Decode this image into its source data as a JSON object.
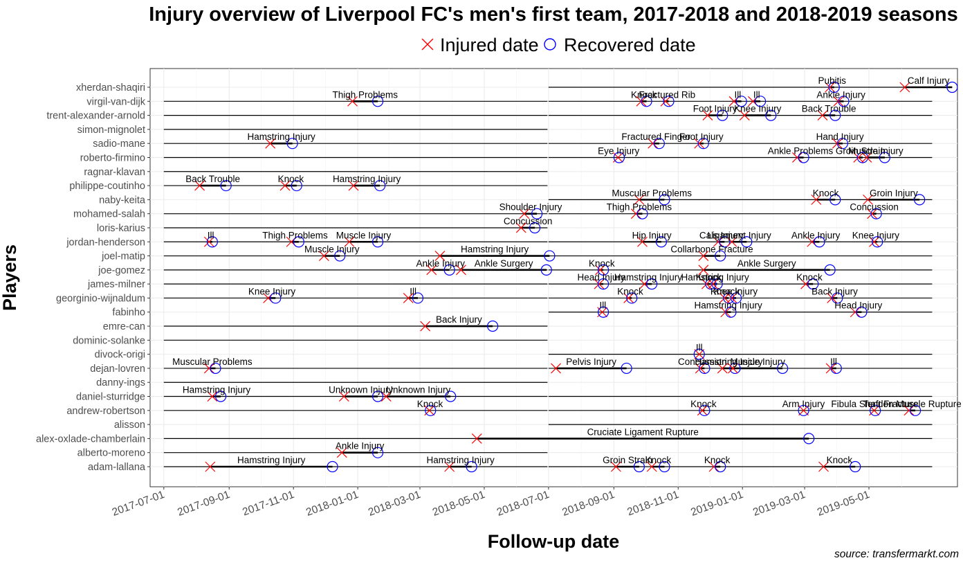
{
  "chart_data": {
    "type": "scatter",
    "title": "Injury overview of Liverpool FC's men's first team, 2017-2018 and 2018-2019 seasons",
    "xlabel": "Follow-up date",
    "ylabel": "Players",
    "caption": "source: transfermarkt.com",
    "legend": {
      "position": "top",
      "items": [
        {
          "label": "Injured date",
          "shape": "cross",
          "color": "#ff0000"
        },
        {
          "label": "Recovered date",
          "shape": "circle",
          "color": "#0000ff"
        }
      ]
    },
    "xlim": [
      "2017-06-18",
      "2019-07-24"
    ],
    "x_ticks": [
      "2017-07-01",
      "2017-09-01",
      "2017-11-01",
      "2018-01-01",
      "2018-03-01",
      "2018-05-01",
      "2018-07-01",
      "2018-09-01",
      "2018-11-01",
      "2019-01-01",
      "2019-03-01",
      "2019-05-01"
    ],
    "grid": true,
    "players": [
      {
        "name": "adam-lallana",
        "follow": [
          [
            "2017-07-01",
            "2018-06-30"
          ],
          [
            "2018-07-01",
            "2019-06-30"
          ]
        ],
        "injuries": [
          {
            "label": "Hamstring Injury",
            "start": "2017-08-14",
            "end": "2017-12-08"
          },
          {
            "label": "Hamstring Injury",
            "start": "2018-03-29",
            "end": "2018-04-19"
          },
          {
            "label": "Groin Strain",
            "start": "2018-09-03",
            "end": "2018-09-25"
          },
          {
            "label": "Knock",
            "start": "2018-10-07",
            "end": "2018-10-19"
          },
          {
            "label": "Knock",
            "start": "2018-12-05",
            "end": "2018-12-11"
          },
          {
            "label": "Knock",
            "start": "2019-03-19",
            "end": "2019-04-18"
          }
        ]
      },
      {
        "name": "alberto-moreno",
        "follow": [
          [
            "2017-07-01",
            "2018-06-30"
          ]
        ],
        "injuries": [
          {
            "label": "Ankle Injury",
            "start": "2017-12-17",
            "end": "2018-01-20"
          }
        ]
      },
      {
        "name": "alex-oxlade-chamberlain",
        "follow": [
          [
            "2017-07-01",
            "2018-06-30"
          ],
          [
            "2018-07-01",
            "2019-06-30"
          ]
        ],
        "injuries": [
          {
            "label": "Cruciate Ligament Rupture",
            "start": "2018-04-24",
            "end": "2019-03-05"
          }
        ]
      },
      {
        "name": "alisson",
        "follow": [
          [
            "2018-07-01",
            "2019-06-30"
          ]
        ],
        "injuries": []
      },
      {
        "name": "andrew-robertson",
        "follow": [
          [
            "2017-07-01",
            "2018-06-30"
          ],
          [
            "2018-07-01",
            "2019-06-30"
          ]
        ],
        "injuries": [
          {
            "label": "Knock",
            "start": "2018-03-10",
            "end": "2018-03-11"
          },
          {
            "label": "Knock",
            "start": "2018-11-24",
            "end": "2018-11-26"
          },
          {
            "label": "Arm Injury",
            "start": "2019-02-28",
            "end": "2019-02-28"
          },
          {
            "label": "Fibula Shaft Fracture",
            "start": "2019-05-06",
            "end": "2019-05-07"
          },
          {
            "label": "Tendon Muscle Rupture",
            "start": "2019-06-08",
            "end": "2019-06-14"
          }
        ]
      },
      {
        "name": "daniel-sturridge",
        "follow": [
          [
            "2017-07-01",
            "2018-06-30"
          ],
          [
            "2018-07-01",
            "2019-06-30"
          ]
        ],
        "injuries": [
          {
            "label": "Hamstring Injury",
            "start": "2017-08-16",
            "end": "2017-08-24"
          },
          {
            "label": "Unknown Injury",
            "start": "2017-12-19",
            "end": "2018-01-20"
          },
          {
            "label": "Unknown Injury",
            "start": "2018-01-28",
            "end": "2018-03-30"
          }
        ]
      },
      {
        "name": "danny-ings",
        "follow": [
          [
            "2017-07-01",
            "2018-06-30"
          ]
        ],
        "injuries": []
      },
      {
        "name": "dejan-lovren",
        "follow": [
          [
            "2017-07-01",
            "2018-06-30"
          ],
          [
            "2018-07-01",
            "2019-06-30"
          ]
        ],
        "injuries": [
          {
            "label": "Muscular Problems",
            "start": "2017-08-13",
            "end": "2017-08-19"
          },
          {
            "label": "Pelvis Injury",
            "start": "2018-07-08",
            "end": "2018-09-13"
          },
          {
            "label": "Concussion",
            "start": "2018-11-22",
            "end": "2018-11-26"
          },
          {
            "label": "Hamstring Injury",
            "start": "2018-12-13",
            "end": "2018-12-25"
          },
          {
            "label": "Muscle Injury",
            "start": "2018-12-23",
            "end": "2019-02-08"
          },
          {
            "label": "Ill",
            "start": "2019-03-26",
            "end": "2019-03-31"
          }
        ]
      },
      {
        "name": "divock-origi",
        "follow": [
          [
            "2018-07-01",
            "2019-06-30"
          ]
        ],
        "injuries": [
          {
            "label": "Ill",
            "start": "2018-11-21",
            "end": "2018-11-21"
          }
        ]
      },
      {
        "name": "dominic-solanke",
        "follow": [
          [
            "2017-07-01",
            "2018-06-30"
          ]
        ],
        "injuries": []
      },
      {
        "name": "emre-can",
        "follow": [
          [
            "2017-07-01",
            "2018-06-30"
          ]
        ],
        "injuries": [
          {
            "label": "Back Injury",
            "start": "2018-03-06",
            "end": "2018-05-09"
          }
        ]
      },
      {
        "name": "fabinho",
        "follow": [
          [
            "2018-07-01",
            "2019-06-30"
          ]
        ],
        "injuries": [
          {
            "label": "Ill",
            "start": "2018-08-21",
            "end": "2018-08-22"
          },
          {
            "label": "Hamstring Injury",
            "start": "2018-12-16",
            "end": "2018-12-21"
          },
          {
            "label": "Head Injury",
            "start": "2019-04-18",
            "end": "2019-04-24"
          }
        ]
      },
      {
        "name": "georginio-wijnaldum",
        "follow": [
          [
            "2017-07-01",
            "2018-06-30"
          ],
          [
            "2018-07-01",
            "2019-06-30"
          ]
        ],
        "injuries": [
          {
            "label": "Knee Injury",
            "start": "2017-10-08",
            "end": "2017-10-15"
          },
          {
            "label": "Ill",
            "start": "2018-02-18",
            "end": "2018-02-27"
          },
          {
            "label": "Knock",
            "start": "2018-09-15",
            "end": "2018-09-18"
          },
          {
            "label": "Knock",
            "start": "2018-12-15",
            "end": "2018-12-19"
          },
          {
            "label": "Knee Injury",
            "start": "2018-12-22",
            "end": "2018-12-26"
          },
          {
            "label": "Back Injury",
            "start": "2019-03-27",
            "end": "2019-04-01"
          }
        ]
      },
      {
        "name": "james-milner",
        "follow": [
          [
            "2017-07-01",
            "2018-06-30"
          ],
          [
            "2018-07-01",
            "2019-06-30"
          ]
        ],
        "injuries": [
          {
            "label": "Head Injury",
            "start": "2018-08-18",
            "end": "2018-08-22"
          },
          {
            "label": "Hamstring Injury",
            "start": "2018-09-30",
            "end": "2018-10-07"
          },
          {
            "label": "Knock",
            "start": "2018-11-28",
            "end": "2018-12-02"
          },
          {
            "label": "Hamstring Injury",
            "start": "2018-12-04",
            "end": "2018-12-08"
          },
          {
            "label": "Knock",
            "start": "2019-03-02",
            "end": "2019-03-09"
          }
        ]
      },
      {
        "name": "joe-gomez",
        "follow": [
          [
            "2017-07-01",
            "2018-06-30"
          ],
          [
            "2018-07-01",
            "2019-06-30"
          ]
        ],
        "injuries": [
          {
            "label": "Ankle Injury",
            "start": "2018-03-12",
            "end": "2018-03-29"
          },
          {
            "label": "Ankle Surgery",
            "start": "2018-04-09",
            "end": "2018-06-29"
          },
          {
            "label": "Knock",
            "start": "2018-08-19",
            "end": "2018-08-22"
          },
          {
            "label": "Ankle Surgery",
            "start": "2018-11-25",
            "end": "2019-03-25"
          }
        ]
      },
      {
        "name": "joel-matip",
        "follow": [
          [
            "2017-07-01",
            "2018-06-30"
          ],
          [
            "2018-07-01",
            "2019-06-30"
          ]
        ],
        "injuries": [
          {
            "label": "Muscle Injury",
            "start": "2017-11-30",
            "end": "2017-12-15"
          },
          {
            "label": "Hamstring Injury",
            "start": "2018-03-20",
            "end": "2018-07-02"
          },
          {
            "label": "Collarbone Fracture",
            "start": "2018-11-25",
            "end": "2018-12-11"
          }
        ]
      },
      {
        "name": "jordan-henderson",
        "follow": [
          [
            "2017-07-01",
            "2018-06-30"
          ],
          [
            "2018-07-01",
            "2019-06-30"
          ]
        ],
        "injuries": [
          {
            "label": "Ill",
            "start": "2017-08-13",
            "end": "2017-08-16"
          },
          {
            "label": "Thigh Problems",
            "start": "2017-10-30",
            "end": "2017-11-06"
          },
          {
            "label": "Muscle Injury",
            "start": "2017-12-24",
            "end": "2018-01-20"
          },
          {
            "label": "Hip Injury",
            "start": "2018-09-28",
            "end": "2018-10-16"
          },
          {
            "label": "Cals Injury",
            "start": "2018-12-09",
            "end": "2018-12-15"
          },
          {
            "label": "Ligament Injury",
            "start": "2018-12-22",
            "end": "2019-01-05"
          },
          {
            "label": "Ankle Injury",
            "start": "2019-03-08",
            "end": "2019-03-15"
          },
          {
            "label": "Knee Injury",
            "start": "2019-05-06",
            "end": "2019-05-09"
          }
        ]
      },
      {
        "name": "loris-karius",
        "follow": [
          [
            "2017-07-01",
            "2018-06-30"
          ]
        ],
        "injuries": [
          {
            "label": "Concussion",
            "start": "2018-06-05",
            "end": "2018-06-18"
          }
        ]
      },
      {
        "name": "mohamed-salah",
        "follow": [
          [
            "2017-07-01",
            "2018-06-30"
          ],
          [
            "2018-07-01",
            "2019-06-30"
          ]
        ],
        "injuries": [
          {
            "label": "Shoulder Injury",
            "start": "2018-06-08",
            "end": "2018-06-20"
          },
          {
            "label": "Thigh Problems",
            "start": "2018-09-22",
            "end": "2018-09-28"
          },
          {
            "label": "Concussion",
            "start": "2019-05-04",
            "end": "2019-05-08"
          }
        ]
      },
      {
        "name": "naby-keita",
        "follow": [
          [
            "2018-07-01",
            "2019-06-30"
          ]
        ],
        "injuries": [
          {
            "label": "Muscular Problems",
            "start": "2018-09-25",
            "end": "2018-10-19"
          },
          {
            "label": "Knock",
            "start": "2019-03-12",
            "end": "2019-03-30"
          },
          {
            "label": "Groin Injury",
            "start": "2019-04-30",
            "end": "2019-06-18"
          }
        ]
      },
      {
        "name": "philippe-coutinho",
        "follow": [
          [
            "2017-07-01",
            "2018-06-30"
          ]
        ],
        "injuries": [
          {
            "label": "Back Trouble",
            "start": "2017-08-04",
            "end": "2017-08-29"
          },
          {
            "label": "Knock",
            "start": "2017-10-24",
            "end": "2017-11-04"
          },
          {
            "label": "Hamstring Injury",
            "start": "2017-12-28",
            "end": "2018-01-22"
          }
        ]
      },
      {
        "name": "ragnar-klavan",
        "follow": [
          [
            "2017-07-01",
            "2018-06-30"
          ]
        ],
        "injuries": []
      },
      {
        "name": "roberto-firmino",
        "follow": [
          [
            "2017-07-01",
            "2018-06-30"
          ],
          [
            "2018-07-01",
            "2019-06-30"
          ]
        ],
        "injuries": [
          {
            "label": "Eye Injury",
            "start": "2018-09-05",
            "end": "2018-09-06"
          },
          {
            "label": "Ankle Problems",
            "start": "2019-02-22",
            "end": "2019-02-28"
          },
          {
            "label": "Groin Strain",
            "start": "2019-04-21",
            "end": "2019-04-25"
          },
          {
            "label": "Muscle Injury",
            "start": "2019-04-29",
            "end": "2019-05-16"
          }
        ]
      },
      {
        "name": "sadio-mane",
        "follow": [
          [
            "2017-07-01",
            "2018-06-30"
          ],
          [
            "2018-07-01",
            "2019-06-30"
          ]
        ],
        "injuries": [
          {
            "label": "Hamstring Injury",
            "start": "2017-10-10",
            "end": "2017-10-31"
          },
          {
            "label": "Fractured Finger",
            "start": "2018-10-08",
            "end": "2018-10-14"
          },
          {
            "label": "Foot Injury",
            "start": "2018-11-21",
            "end": "2018-11-25"
          },
          {
            "label": "Hand Injury",
            "start": "2019-04-01",
            "end": "2019-04-06"
          }
        ]
      },
      {
        "name": "simon-mignolet",
        "follow": [
          [
            "2017-07-01",
            "2018-06-30"
          ]
        ],
        "injuries": []
      },
      {
        "name": "trent-alexander-arnold",
        "follow": [
          [
            "2017-07-01",
            "2018-06-30"
          ],
          [
            "2018-07-01",
            "2019-06-30"
          ]
        ],
        "injuries": [
          {
            "label": "Foot Injury",
            "start": "2018-11-29",
            "end": "2018-12-13"
          },
          {
            "label": "Knee Injury",
            "start": "2019-01-03",
            "end": "2019-01-28"
          },
          {
            "label": "Back Trouble",
            "start": "2019-03-18",
            "end": "2019-03-30"
          }
        ]
      },
      {
        "name": "virgil-van-dijk",
        "follow": [
          [
            "2017-07-01",
            "2018-06-30"
          ],
          [
            "2018-07-01",
            "2019-06-30"
          ]
        ],
        "injuries": [
          {
            "label": "Thigh Problems",
            "start": "2017-12-27",
            "end": "2018-01-20"
          },
          {
            "label": "Knock",
            "start": "2018-09-27",
            "end": "2018-10-02"
          },
          {
            "label": "Fractured Rib",
            "start": "2018-10-20",
            "end": "2018-10-23"
          },
          {
            "label": "Ill",
            "start": "2018-12-24",
            "end": "2018-12-31"
          },
          {
            "label": "Ill",
            "start": "2019-01-11",
            "end": "2019-01-18"
          },
          {
            "label": "Ankle Injury",
            "start": "2019-04-02",
            "end": "2019-04-07"
          }
        ]
      },
      {
        "name": "xherdan-shaqiri",
        "follow": [
          [
            "2018-07-01",
            "2019-06-30"
          ]
        ],
        "injuries": [
          {
            "label": "Pubitis",
            "start": "2019-03-25",
            "end": "2019-03-29"
          },
          {
            "label": "Calf Injury",
            "start": "2019-06-04",
            "end": "2019-07-19"
          }
        ]
      }
    ]
  }
}
